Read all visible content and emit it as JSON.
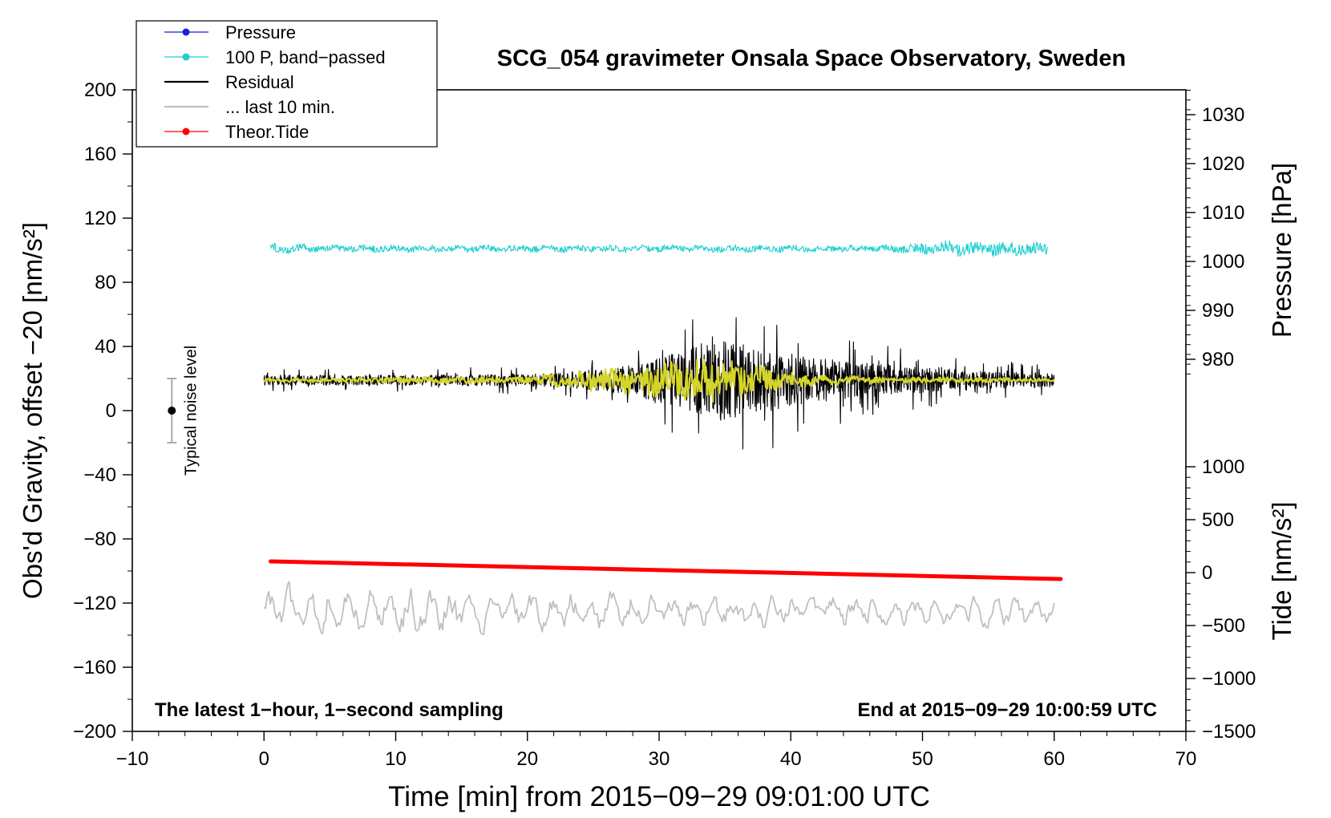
{
  "chart_data": {
    "type": "line",
    "title": "SCG_054 gravimeter Onsala Space Observatory, Sweden",
    "xlabel": "Time [min] from 2015−09−29 09:01:00 UTC",
    "xlim": [
      -10,
      70
    ],
    "x_ticks": [
      "−10",
      "0",
      "10",
      "20",
      "30",
      "40",
      "50",
      "60",
      "70"
    ],
    "ylabel_left": "Obs'd Gravity, offset −20 [nm/s²]",
    "ylim_left": [
      -200,
      200
    ],
    "y_ticks_left": [
      "−200",
      "−160",
      "−120",
      "−80",
      "−40",
      "0",
      "40",
      "80",
      "120",
      "160",
      "200"
    ],
    "ylabel_pressure": "Pressure [hPa]",
    "pressure_ticks": [
      "980",
      "990",
      "1000",
      "1010",
      "1020",
      "1030"
    ],
    "ylabel_tide": "Tide [nm/s²]",
    "tide_ticks": [
      "−1500",
      "−1000",
      "−500",
      "0",
      "500",
      "1000"
    ],
    "legend": [
      {
        "label": "Pressure",
        "color": "#1f1fd8",
        "marker": true
      },
      {
        "label": "100 P, band−passed",
        "color": "#20cfcf",
        "marker": true
      },
      {
        "label": "Residual",
        "color": "#000000",
        "marker": false
      },
      {
        "label": "... last 10 min.",
        "color": "#c0c0c0",
        "marker": false
      },
      {
        "label": "Theor.Tide",
        "color": "#ff0000",
        "marker": true
      }
    ],
    "series": [
      {
        "name": "100 P, band-passed",
        "color": "#20cfcf",
        "x_range": [
          0.5,
          59.5
        ],
        "baseline": 101,
        "amplitude_profile": [
          [
            0,
            3
          ],
          [
            5,
            2
          ],
          [
            20,
            2
          ],
          [
            48,
            2
          ],
          [
            52,
            4
          ],
          [
            59,
            4
          ]
        ]
      },
      {
        "name": "Residual",
        "color": "#000000",
        "x_range": [
          0,
          60
        ],
        "baseline": 19,
        "amplitude_profile": [
          [
            0,
            7
          ],
          [
            10,
            7
          ],
          [
            22,
            9
          ],
          [
            27,
            18
          ],
          [
            30,
            30
          ],
          [
            33,
            50
          ],
          [
            35,
            55
          ],
          [
            38,
            45
          ],
          [
            41,
            32
          ],
          [
            45,
            25
          ],
          [
            50,
            18
          ],
          [
            55,
            12
          ],
          [
            60,
            10
          ]
        ]
      },
      {
        "name": "Smoothed residual",
        "color": "#d4d42a",
        "x_range": [
          0,
          60
        ],
        "baseline": 19,
        "amplitude_profile": [
          [
            0,
            1
          ],
          [
            20,
            2
          ],
          [
            25,
            6
          ],
          [
            30,
            9
          ],
          [
            34,
            12
          ],
          [
            37,
            8
          ],
          [
            40,
            4
          ],
          [
            45,
            2
          ],
          [
            60,
            1
          ]
        ]
      },
      {
        "name": "... last 10 min.",
        "color": "#c0c0c0",
        "x_range": [
          0,
          60
        ],
        "baseline": -125,
        "amplitude_profile": [
          [
            0,
            12
          ],
          [
            10,
            13
          ],
          [
            20,
            10
          ],
          [
            25,
            12
          ],
          [
            30,
            9
          ],
          [
            45,
            9
          ],
          [
            60,
            8
          ]
        ]
      },
      {
        "name": "Theor.Tide",
        "color": "#ff0000",
        "x": [
          0.5,
          60.5
        ],
        "y": [
          -94,
          -105
        ]
      }
    ],
    "noise_bar": {
      "label": "Typical noise level",
      "x": -7,
      "center": 0,
      "low": -20,
      "high": 20
    },
    "annotations": {
      "bottom_left": "The latest 1−hour, 1−second sampling",
      "bottom_right": "End at 2015−09−29 10:00:59 UTC"
    }
  }
}
